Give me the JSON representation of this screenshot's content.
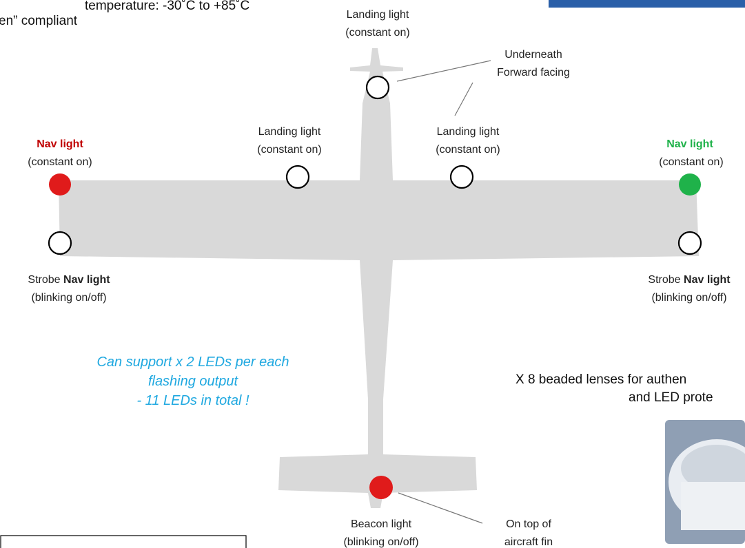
{
  "header": {
    "lines": [
      "temperature: -30˚C to +85˚C",
      "en” compliant"
    ]
  },
  "top_landing": {
    "lines": [
      "Landing light",
      "(constant on)"
    ]
  },
  "underneath_note": {
    "lines": [
      "Underneath",
      "Forward facing"
    ]
  },
  "wing_landing_left": {
    "lines": [
      "Landing light",
      "(constant on)"
    ]
  },
  "wing_landing_right": {
    "lines": [
      "Landing light",
      "(constant on)"
    ]
  },
  "nav_left": {
    "title": "Nav light",
    "subtitle": "(constant on)"
  },
  "nav_right": {
    "title": "Nav light",
    "subtitle": "(constant on)"
  },
  "strobe_left": {
    "prefix": "Strobe",
    "bold": "Nav light",
    "subtitle": "(blinking on/off)"
  },
  "strobe_right": {
    "prefix": "Strobe",
    "bold": "Nav light",
    "subtitle": "(blinking on/off)"
  },
  "support_note": {
    "lines": [
      "Can support x 2 LEDs per each",
      "flashing output",
      "- 11 LEDs in total !"
    ]
  },
  "lenses_note": {
    "lines": [
      "X 8 beaded lenses for authen",
      "and LED prote"
    ]
  },
  "beacon": {
    "lines": [
      "Beacon light",
      "(blinking on/off)"
    ]
  },
  "fin_note": {
    "lines": [
      "On top of",
      "aircraft  fin"
    ]
  }
}
